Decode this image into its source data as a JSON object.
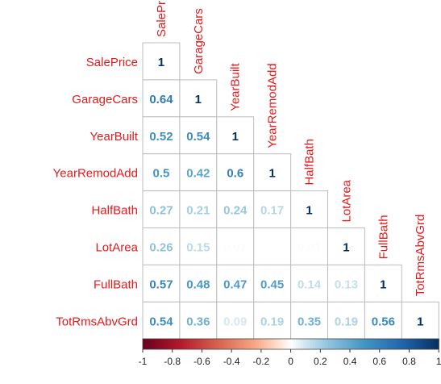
{
  "chart_data": {
    "type": "heatmap",
    "variables": [
      "SalePrice",
      "GarageCars",
      "YearBuilt",
      "YearRemodAdd",
      "HalfBath",
      "LotArea",
      "FullBath",
      "TotRmsAbvGrd"
    ],
    "lower_triangle": [
      [
        1
      ],
      [
        0.64,
        1
      ],
      [
        0.52,
        0.54,
        1
      ],
      [
        0.5,
        0.42,
        0.6,
        1
      ],
      [
        0.27,
        0.21,
        0.24,
        0.17,
        1
      ],
      [
        0.26,
        0.15,
        0.01,
        0.0,
        0.01,
        1
      ],
      [
        0.57,
        0.48,
        0.47,
        0.45,
        0.14,
        0.13,
        1
      ],
      [
        0.54,
        0.36,
        0.09,
        0.19,
        0.35,
        0.19,
        0.56,
        1
      ]
    ],
    "labels": [
      [
        "1"
      ],
      [
        "0.64",
        "1"
      ],
      [
        "0.52",
        "0.54",
        "1"
      ],
      [
        "0.5",
        "0.42",
        "0.6",
        "1"
      ],
      [
        "0.27",
        "0.21",
        "0.24",
        "0.17",
        "1"
      ],
      [
        "0.26",
        "0.15",
        "0.01",
        "0",
        "0.01",
        "1"
      ],
      [
        "0.57",
        "0.48",
        "0.47",
        "0.45",
        "0.14",
        "0.13",
        "1"
      ],
      [
        "0.54",
        "0.36",
        "0.09",
        "0.19",
        "0.35",
        "0.19",
        "0.56",
        "1"
      ]
    ],
    "colorbar": {
      "range": [
        -1,
        1
      ],
      "ticks": [
        "-1",
        "-0.8",
        "-0.6",
        "-0.4",
        "-0.2",
        "0",
        "0.2",
        "0.4",
        "0.6",
        "0.8",
        "1"
      ],
      "placement": "bottom"
    },
    "colors": {
      "label_text": "#e41a1c",
      "grid": "#bdbdbd",
      "negative_end": "#67001f",
      "neutral": "#ffffff",
      "positive_end": "#053061"
    }
  }
}
